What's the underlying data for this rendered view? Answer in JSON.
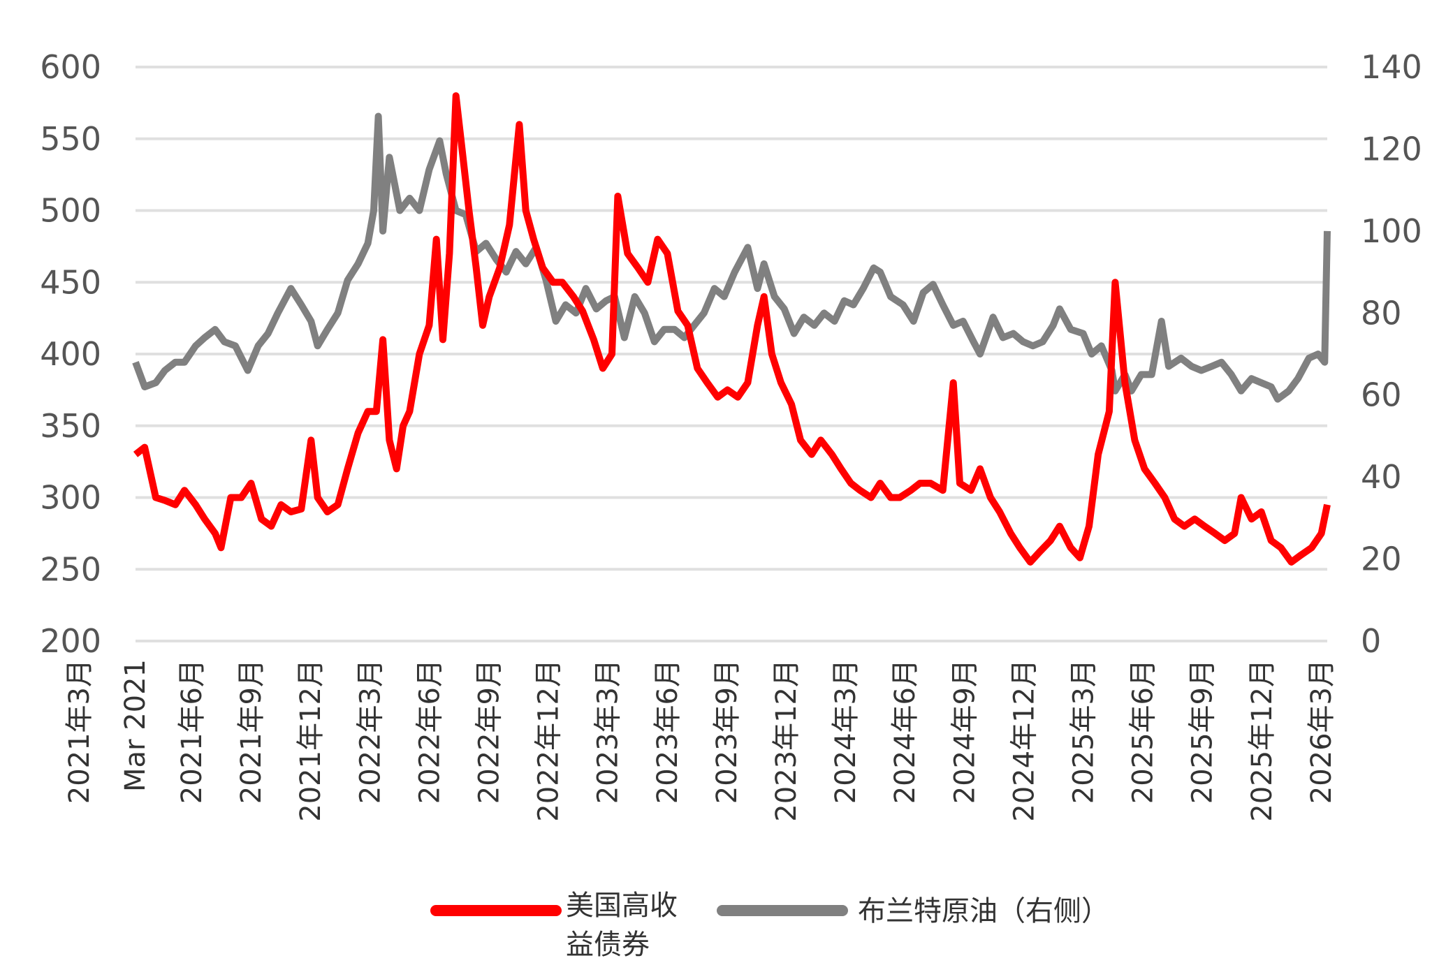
{
  "chart_data": {
    "type": "line",
    "title": "",
    "grid": true,
    "legend_position": "bottom",
    "y_left": {
      "range": [
        200,
        600
      ],
      "ticks": [
        200,
        250,
        300,
        350,
        400,
        450,
        500,
        550,
        600
      ]
    },
    "y_right": {
      "range": [
        0,
        140
      ],
      "ticks": [
        0,
        20,
        40,
        60,
        80,
        100,
        120,
        140
      ]
    },
    "x_range": [
      "2021-03",
      "2026-03"
    ],
    "x_tick_labels": [
      "2021年3月",
      "Mar 2021",
      "2021年6月",
      "2021年9月",
      "2021年12月",
      "2022年3月",
      "2022年6月",
      "2022年9月",
      "2022年12月",
      "2023年3月",
      "2023年6月",
      "2023年9月",
      "2023年12月",
      "2024年3月",
      "2024年6月",
      "2024年9月",
      "2024年12月",
      "2025年3月",
      "2025年6月",
      "2025年9月",
      "2025年12月",
      "2026年3月"
    ],
    "series": [
      {
        "name": "美国高收益债券",
        "name_lines": [
          "美国高收",
          "益债券"
        ],
        "axis": "left",
        "color": "#ff0000",
        "points": [
          [
            "2021-03-01",
            330
          ],
          [
            "2021-03-15",
            335
          ],
          [
            "2021-04-01",
            300
          ],
          [
            "2021-04-15",
            298
          ],
          [
            "2021-05-01",
            295
          ],
          [
            "2021-05-15",
            305
          ],
          [
            "2021-06-01",
            295
          ],
          [
            "2021-06-15",
            285
          ],
          [
            "2021-07-01",
            275
          ],
          [
            "2021-07-10",
            265
          ],
          [
            "2021-07-25",
            300
          ],
          [
            "2021-08-10",
            300
          ],
          [
            "2021-08-25",
            310
          ],
          [
            "2021-09-10",
            285
          ],
          [
            "2021-09-25",
            280
          ],
          [
            "2021-10-10",
            295
          ],
          [
            "2021-10-25",
            290
          ],
          [
            "2021-11-10",
            292
          ],
          [
            "2021-11-25",
            340
          ],
          [
            "2021-12-05",
            300
          ],
          [
            "2021-12-20",
            290
          ],
          [
            "2022-01-05",
            295
          ],
          [
            "2022-01-20",
            320
          ],
          [
            "2022-02-05",
            345
          ],
          [
            "2022-02-20",
            360
          ],
          [
            "2022-03-05",
            360
          ],
          [
            "2022-03-15",
            410
          ],
          [
            "2022-03-25",
            340
          ],
          [
            "2022-04-05",
            320
          ],
          [
            "2022-04-15",
            350
          ],
          [
            "2022-04-25",
            360
          ],
          [
            "2022-05-10",
            400
          ],
          [
            "2022-05-25",
            420
          ],
          [
            "2022-06-05",
            480
          ],
          [
            "2022-06-15",
            410
          ],
          [
            "2022-06-25",
            470
          ],
          [
            "2022-07-05",
            580
          ],
          [
            "2022-07-15",
            540
          ],
          [
            "2022-07-25",
            500
          ],
          [
            "2022-08-05",
            460
          ],
          [
            "2022-08-15",
            420
          ],
          [
            "2022-08-25",
            440
          ],
          [
            "2022-09-10",
            460
          ],
          [
            "2022-09-25",
            490
          ],
          [
            "2022-10-10",
            560
          ],
          [
            "2022-10-20",
            500
          ],
          [
            "2022-11-01",
            480
          ],
          [
            "2022-11-15",
            460
          ],
          [
            "2022-12-01",
            450
          ],
          [
            "2022-12-15",
            450
          ],
          [
            "2023-01-01",
            440
          ],
          [
            "2023-01-15",
            430
          ],
          [
            "2023-02-01",
            410
          ],
          [
            "2023-02-15",
            390
          ],
          [
            "2023-03-01",
            400
          ],
          [
            "2023-03-10",
            510
          ],
          [
            "2023-03-25",
            470
          ],
          [
            "2023-04-10",
            460
          ],
          [
            "2023-04-25",
            450
          ],
          [
            "2023-05-10",
            480
          ],
          [
            "2023-05-25",
            470
          ],
          [
            "2023-06-10",
            430
          ],
          [
            "2023-06-25",
            420
          ],
          [
            "2023-07-10",
            390
          ],
          [
            "2023-07-25",
            380
          ],
          [
            "2023-08-10",
            370
          ],
          [
            "2023-08-25",
            375
          ],
          [
            "2023-09-10",
            370
          ],
          [
            "2023-09-25",
            380
          ],
          [
            "2023-10-10",
            420
          ],
          [
            "2023-10-20",
            440
          ],
          [
            "2023-11-01",
            400
          ],
          [
            "2023-11-15",
            380
          ],
          [
            "2023-12-01",
            365
          ],
          [
            "2023-12-15",
            340
          ],
          [
            "2024-01-01",
            330
          ],
          [
            "2024-01-15",
            340
          ],
          [
            "2024-02-01",
            330
          ],
          [
            "2024-02-15",
            320
          ],
          [
            "2024-03-01",
            310
          ],
          [
            "2024-03-15",
            305
          ],
          [
            "2024-04-01",
            300
          ],
          [
            "2024-04-15",
            310
          ],
          [
            "2024-05-01",
            300
          ],
          [
            "2024-05-15",
            300
          ],
          [
            "2024-06-01",
            305
          ],
          [
            "2024-06-15",
            310
          ],
          [
            "2024-07-01",
            310
          ],
          [
            "2024-07-20",
            305
          ],
          [
            "2024-08-05",
            380
          ],
          [
            "2024-08-15",
            310
          ],
          [
            "2024-09-01",
            305
          ],
          [
            "2024-09-15",
            320
          ],
          [
            "2024-10-01",
            300
          ],
          [
            "2024-10-15",
            290
          ],
          [
            "2024-11-01",
            275
          ],
          [
            "2024-11-15",
            265
          ],
          [
            "2024-12-01",
            255
          ],
          [
            "2024-12-15",
            262
          ],
          [
            "2025-01-01",
            270
          ],
          [
            "2025-01-15",
            280
          ],
          [
            "2025-02-01",
            265
          ],
          [
            "2025-02-15",
            258
          ],
          [
            "2025-03-01",
            280
          ],
          [
            "2025-03-15",
            330
          ],
          [
            "2025-04-01",
            360
          ],
          [
            "2025-04-10",
            450
          ],
          [
            "2025-04-25",
            380
          ],
          [
            "2025-05-10",
            340
          ],
          [
            "2025-05-25",
            320
          ],
          [
            "2025-06-10",
            310
          ],
          [
            "2025-06-25",
            300
          ],
          [
            "2025-07-10",
            285
          ],
          [
            "2025-07-25",
            280
          ],
          [
            "2025-08-10",
            285
          ],
          [
            "2025-08-25",
            280
          ],
          [
            "2025-09-10",
            275
          ],
          [
            "2025-09-25",
            270
          ],
          [
            "2025-10-10",
            275
          ],
          [
            "2025-10-20",
            300
          ],
          [
            "2025-11-05",
            285
          ],
          [
            "2025-11-20",
            290
          ],
          [
            "2025-12-05",
            270
          ],
          [
            "2025-12-20",
            265
          ],
          [
            "2026-01-05",
            255
          ],
          [
            "2026-01-20",
            260
          ],
          [
            "2026-02-05",
            265
          ],
          [
            "2026-02-20",
            275
          ],
          [
            "2026-03-01",
            295
          ]
        ]
      },
      {
        "name": "布兰特原油（右侧）",
        "axis": "right",
        "color": "#808080",
        "points": [
          [
            "2021-03-01",
            68
          ],
          [
            "2021-03-15",
            62
          ],
          [
            "2021-04-01",
            63
          ],
          [
            "2021-04-15",
            66
          ],
          [
            "2021-05-01",
            68
          ],
          [
            "2021-05-15",
            68
          ],
          [
            "2021-06-01",
            72
          ],
          [
            "2021-06-15",
            74
          ],
          [
            "2021-07-01",
            76
          ],
          [
            "2021-07-15",
            73
          ],
          [
            "2021-08-01",
            72
          ],
          [
            "2021-08-20",
            66
          ],
          [
            "2021-09-05",
            72
          ],
          [
            "2021-09-20",
            75
          ],
          [
            "2021-10-05",
            80
          ],
          [
            "2021-10-25",
            86
          ],
          [
            "2021-11-10",
            82
          ],
          [
            "2021-11-25",
            78
          ],
          [
            "2021-12-05",
            72
          ],
          [
            "2021-12-20",
            76
          ],
          [
            "2022-01-05",
            80
          ],
          [
            "2022-01-20",
            88
          ],
          [
            "2022-02-05",
            92
          ],
          [
            "2022-02-20",
            97
          ],
          [
            "2022-03-01",
            105
          ],
          [
            "2022-03-08",
            128
          ],
          [
            "2022-03-15",
            100
          ],
          [
            "2022-03-25",
            118
          ],
          [
            "2022-04-10",
            105
          ],
          [
            "2022-04-25",
            108
          ],
          [
            "2022-05-10",
            105
          ],
          [
            "2022-05-25",
            115
          ],
          [
            "2022-06-10",
            122
          ],
          [
            "2022-06-20",
            114
          ],
          [
            "2022-07-05",
            105
          ],
          [
            "2022-07-20",
            104
          ],
          [
            "2022-08-05",
            95
          ],
          [
            "2022-08-20",
            97
          ],
          [
            "2022-09-05",
            93
          ],
          [
            "2022-09-20",
            90
          ],
          [
            "2022-10-05",
            95
          ],
          [
            "2022-10-20",
            92
          ],
          [
            "2022-11-05",
            96
          ],
          [
            "2022-11-20",
            88
          ],
          [
            "2022-12-05",
            78
          ],
          [
            "2022-12-20",
            82
          ],
          [
            "2023-01-05",
            80
          ],
          [
            "2023-01-20",
            86
          ],
          [
            "2023-02-05",
            81
          ],
          [
            "2023-02-20",
            83
          ],
          [
            "2023-03-05",
            84
          ],
          [
            "2023-03-20",
            74
          ],
          [
            "2023-04-05",
            84
          ],
          [
            "2023-04-20",
            80
          ],
          [
            "2023-05-05",
            73
          ],
          [
            "2023-05-20",
            76
          ],
          [
            "2023-06-05",
            76
          ],
          [
            "2023-06-20",
            74
          ],
          [
            "2023-07-05",
            77
          ],
          [
            "2023-07-20",
            80
          ],
          [
            "2023-08-05",
            86
          ],
          [
            "2023-08-20",
            84
          ],
          [
            "2023-09-05",
            90
          ],
          [
            "2023-09-25",
            96
          ],
          [
            "2023-10-10",
            86
          ],
          [
            "2023-10-20",
            92
          ],
          [
            "2023-11-05",
            84
          ],
          [
            "2023-11-20",
            81
          ],
          [
            "2023-12-05",
            75
          ],
          [
            "2023-12-20",
            79
          ],
          [
            "2024-01-05",
            77
          ],
          [
            "2024-01-20",
            80
          ],
          [
            "2024-02-05",
            78
          ],
          [
            "2024-02-20",
            83
          ],
          [
            "2024-03-05",
            82
          ],
          [
            "2024-03-20",
            86
          ],
          [
            "2024-04-05",
            91
          ],
          [
            "2024-04-15",
            90
          ],
          [
            "2024-05-01",
            84
          ],
          [
            "2024-05-20",
            82
          ],
          [
            "2024-06-05",
            78
          ],
          [
            "2024-06-20",
            85
          ],
          [
            "2024-07-05",
            87
          ],
          [
            "2024-07-20",
            82
          ],
          [
            "2024-08-05",
            77
          ],
          [
            "2024-08-20",
            78
          ],
          [
            "2024-09-05",
            73
          ],
          [
            "2024-09-15",
            70
          ],
          [
            "2024-10-05",
            79
          ],
          [
            "2024-10-20",
            74
          ],
          [
            "2024-11-05",
            75
          ],
          [
            "2024-11-20",
            73
          ],
          [
            "2024-12-05",
            72
          ],
          [
            "2024-12-20",
            73
          ],
          [
            "2025-01-05",
            77
          ],
          [
            "2025-01-15",
            81
          ],
          [
            "2025-02-01",
            76
          ],
          [
            "2025-02-20",
            75
          ],
          [
            "2025-03-05",
            70
          ],
          [
            "2025-03-20",
            72
          ],
          [
            "2025-04-05",
            66
          ],
          [
            "2025-04-10",
            61
          ],
          [
            "2025-04-25",
            65
          ],
          [
            "2025-05-05",
            61
          ],
          [
            "2025-05-20",
            65
          ],
          [
            "2025-06-05",
            65
          ],
          [
            "2025-06-20",
            78
          ],
          [
            "2025-07-01",
            67
          ],
          [
            "2025-07-20",
            69
          ],
          [
            "2025-08-05",
            67
          ],
          [
            "2025-08-20",
            66
          ],
          [
            "2025-09-05",
            67
          ],
          [
            "2025-09-20",
            68
          ],
          [
            "2025-10-05",
            65
          ],
          [
            "2025-10-20",
            61
          ],
          [
            "2025-11-05",
            64
          ],
          [
            "2025-11-20",
            63
          ],
          [
            "2025-12-05",
            62
          ],
          [
            "2025-12-15",
            59
          ],
          [
            "2026-01-01",
            61
          ],
          [
            "2026-01-15",
            64
          ],
          [
            "2026-02-01",
            69
          ],
          [
            "2026-02-15",
            70
          ],
          [
            "2026-02-25",
            68
          ],
          [
            "2026-03-01",
            100
          ]
        ]
      }
    ]
  }
}
